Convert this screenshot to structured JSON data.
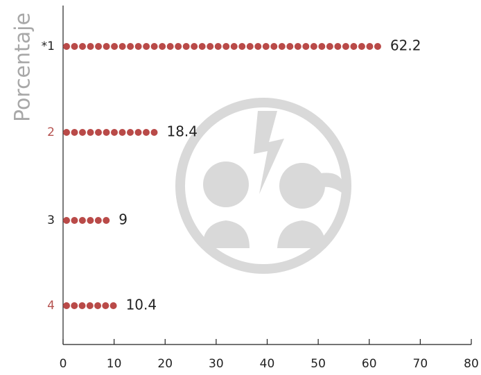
{
  "chart_data": {
    "type": "dotbar",
    "y_label": "Porcentaje",
    "categories": [
      "*1",
      "2",
      "3",
      "4"
    ],
    "category_colors": [
      "#222222",
      "#b5524f",
      "#222222",
      "#b5524f"
    ],
    "values": [
      62.2,
      18.4,
      9,
      10.4
    ],
    "color": "#b94a48",
    "xlim": [
      0,
      80
    ],
    "xticks": [
      0,
      10,
      20,
      30,
      40,
      50,
      60,
      70,
      80
    ]
  }
}
